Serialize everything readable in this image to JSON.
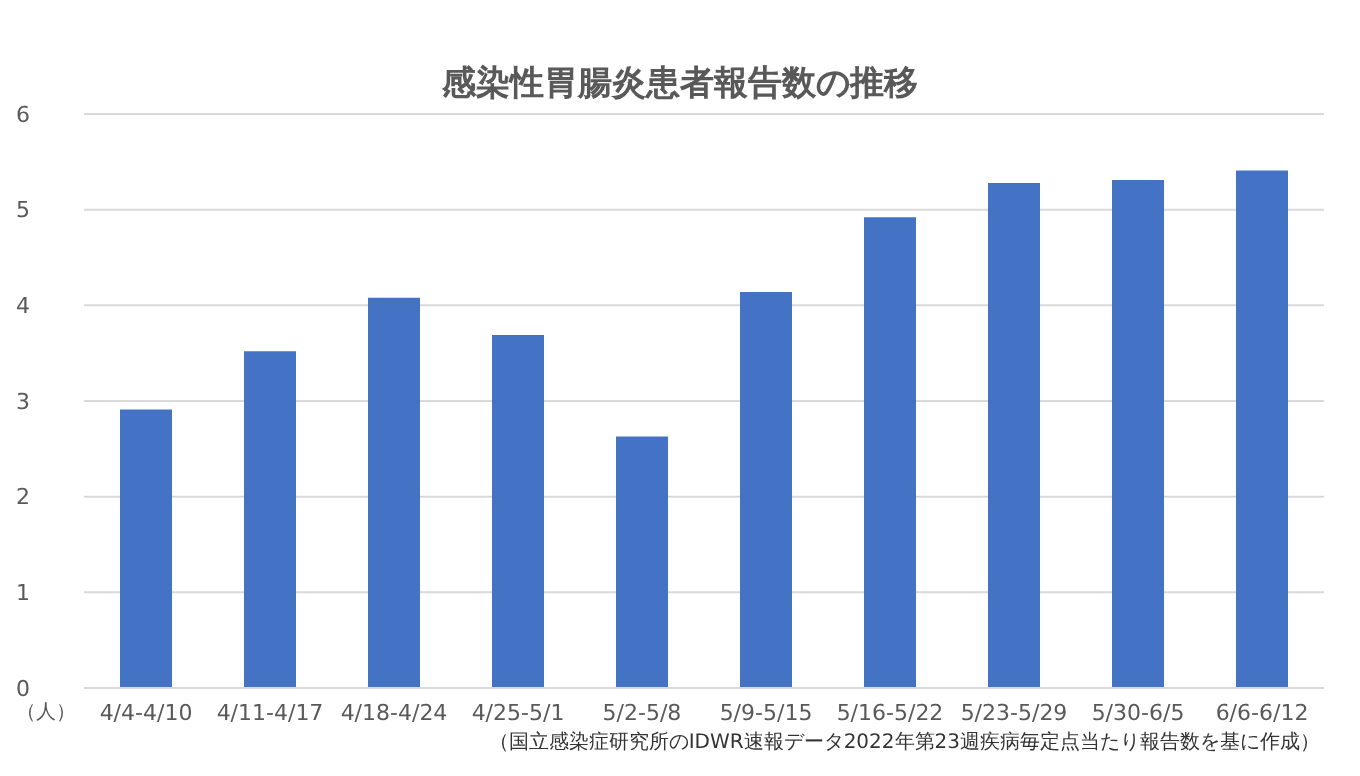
{
  "chart_data": {
    "type": "bar",
    "title": "感染性胃腸炎患者報告数の推移",
    "ylabel": "（人）",
    "categories": [
      "4/4-4/10",
      "4/11-4/17",
      "4/18-4/24",
      "4/25-5/1",
      "5/2-5/8",
      "5/9-5/15",
      "5/16-5/22",
      "5/23-5/29",
      "5/30-6/5",
      "6/6-6/12"
    ],
    "values": [
      2.91,
      3.52,
      4.08,
      3.69,
      2.63,
      4.14,
      4.92,
      5.28,
      5.31,
      5.41
    ],
    "color": "#4472c4",
    "ylim": [
      0,
      6
    ],
    "yticks": [
      0,
      1,
      2,
      3,
      4,
      5,
      6
    ],
    "grid": "y",
    "annotations": [
      "（国立感染症研究所のIDWR速報データ2022年第23週疾病毎定点当たり報告数を基に作成）"
    ]
  }
}
